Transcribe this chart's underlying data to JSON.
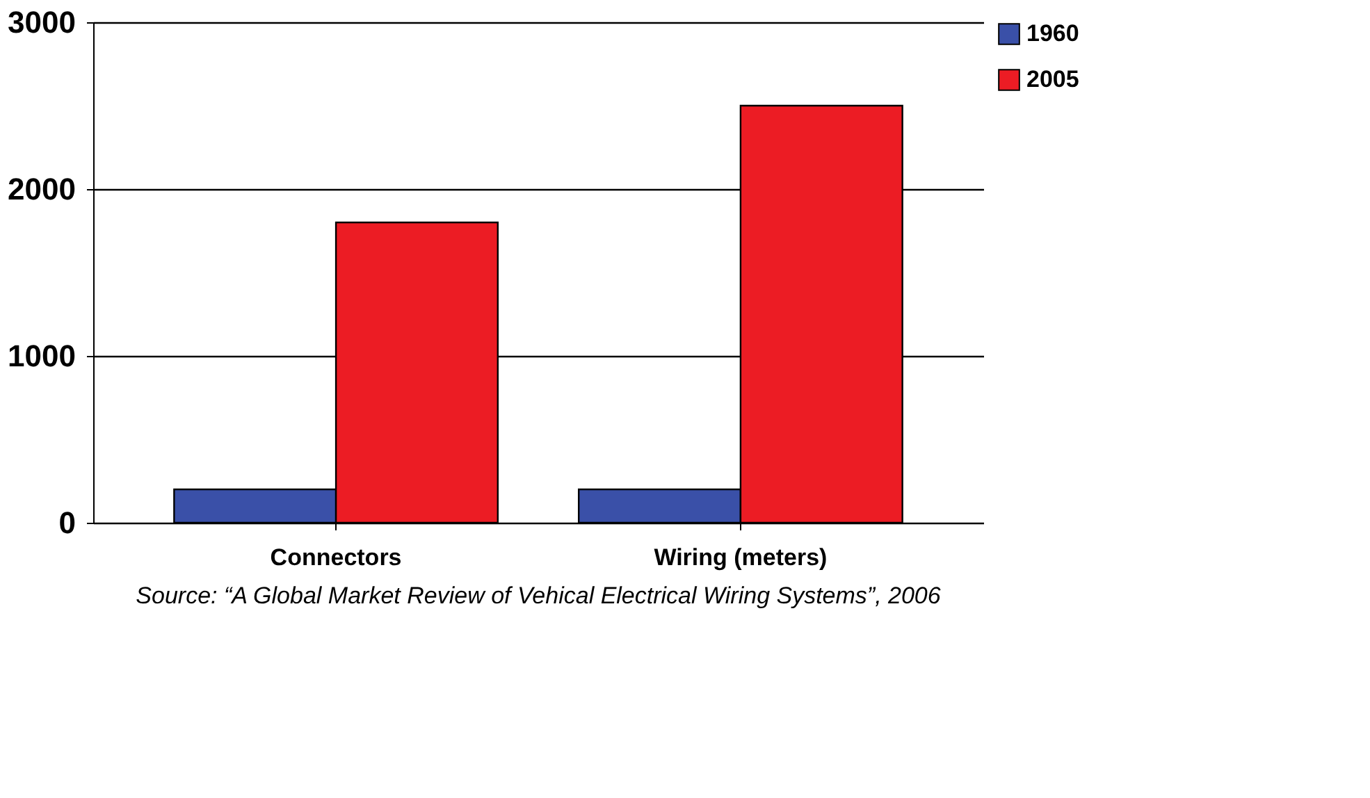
{
  "chart_data": {
    "type": "bar",
    "categories": [
      "Connectors",
      "Wiring (meters)"
    ],
    "series": [
      {
        "name": "1960",
        "color": "#3a50a8",
        "values": [
          200,
          200
        ]
      },
      {
        "name": "2005",
        "color": "#ec1c24",
        "values": [
          1800,
          2500
        ]
      }
    ],
    "ylim": [
      0,
      3000
    ],
    "yticks": [
      0,
      1000,
      2000,
      3000
    ],
    "grid": "y",
    "legend": "right",
    "annotations": [
      "Source: “A Global Market Review of Vehical Electrical Wiring Systems”, 2006"
    ]
  }
}
